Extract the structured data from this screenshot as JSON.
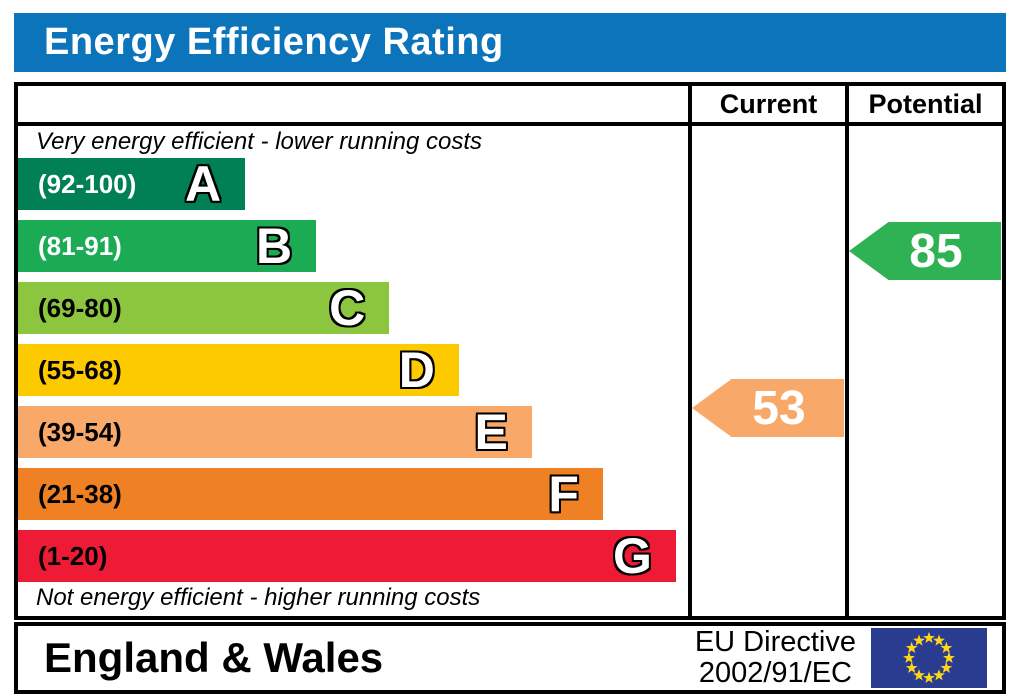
{
  "title": {
    "text": "Energy Efficiency Rating",
    "bg_color": "#0b74ba",
    "fg_color": "#ffffff"
  },
  "table": {
    "columns": {
      "current": "Current",
      "potential": "Potential"
    },
    "top_note": "Very energy efficient - lower running costs",
    "bottom_note": "Not energy efficient - higher running costs",
    "bands": [
      {
        "letter": "A",
        "range": "(92-100)",
        "color": "#008054",
        "label_color": "#ffffff",
        "width_pct": 33.9
      },
      {
        "letter": "B",
        "range": "(81-91)",
        "color": "#1cab55",
        "label_color": "#ffffff",
        "width_pct": 44.5
      },
      {
        "letter": "C",
        "range": "(69-80)",
        "color": "#8cc63f",
        "label_color": "#000000",
        "width_pct": 55.4
      },
      {
        "letter": "D",
        "range": "(55-68)",
        "color": "#fdca00",
        "label_color": "#000000",
        "width_pct": 65.8
      },
      {
        "letter": "E",
        "range": "(39-54)",
        "color": "#f8a96a",
        "label_color": "#000000",
        "width_pct": 76.7
      },
      {
        "letter": "F",
        "range": "(21-38)",
        "color": "#ef8023",
        "label_color": "#000000",
        "width_pct": 87.3
      },
      {
        "letter": "G",
        "range": "(1-20)",
        "color": "#ed1b36",
        "label_color": "#000000",
        "width_pct": 98.2
      }
    ],
    "current": {
      "value": "53",
      "arrow_color": "#f8a96a",
      "band": "E"
    },
    "potential": {
      "value": "85",
      "arrow_color": "#2eb254",
      "band": "B"
    }
  },
  "footer": {
    "region": "England & Wales",
    "directive_line1": "EU Directive",
    "directive_line2": "2002/91/EC",
    "eu_flag": {
      "bg_color": "#2a3c90",
      "star_color": "#ffd617"
    }
  },
  "chart_data": {
    "type": "bar",
    "title": "Energy Efficiency Rating",
    "categories": [
      "A",
      "B",
      "C",
      "D",
      "E",
      "F",
      "G"
    ],
    "band_ranges": [
      "92-100",
      "81-91",
      "69-80",
      "55-68",
      "39-54",
      "21-38",
      "1-20"
    ],
    "band_colors": [
      "#008054",
      "#1cab55",
      "#8cc63f",
      "#fdca00",
      "#f8a96a",
      "#ef8023",
      "#ed1b36"
    ],
    "bar_width_pct": [
      33.9,
      44.5,
      55.4,
      65.8,
      76.7,
      87.3,
      98.2
    ],
    "current_rating": 53,
    "current_band": "E",
    "potential_rating": 85,
    "potential_band": "B",
    "scale": [
      1,
      100
    ],
    "legend_position": "none",
    "grid": false
  }
}
